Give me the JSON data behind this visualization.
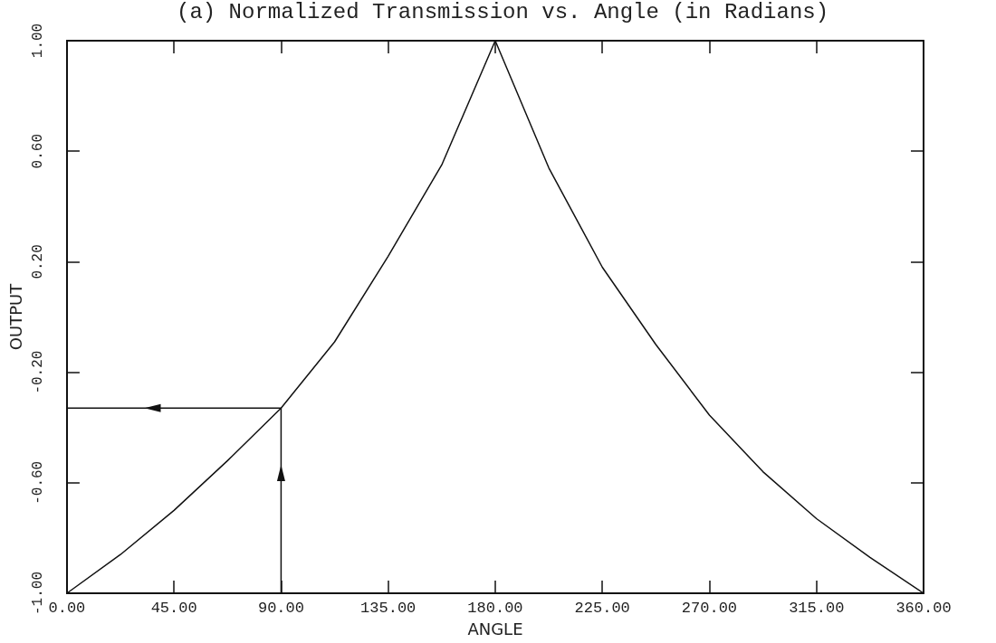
{
  "chart_data": {
    "type": "line",
    "title": "(a) Normalized Transmission vs. Angle (in Radians)",
    "xlabel": "ANGLE",
    "ylabel": "OUTPUT",
    "xlim": [
      0,
      360
    ],
    "ylim": [
      -1,
      1
    ],
    "xticks": [
      {
        "value": 0,
        "label": "0.00"
      },
      {
        "value": 45,
        "label": "45.00"
      },
      {
        "value": 90,
        "label": "90.00"
      },
      {
        "value": 135,
        "label": "135.00"
      },
      {
        "value": 180,
        "label": "180.00"
      },
      {
        "value": 225,
        "label": "225.00"
      },
      {
        "value": 270,
        "label": "270.00"
      },
      {
        "value": 315,
        "label": "315.00"
      },
      {
        "value": 360,
        "label": "360.00"
      }
    ],
    "yticks": [
      {
        "value": -1,
        "label": "-1.00"
      },
      {
        "value": -0.6,
        "label": "-0.60"
      },
      {
        "value": -0.2,
        "label": "-0.20"
      },
      {
        "value": 0.2,
        "label": "0.20"
      },
      {
        "value": 0.6,
        "label": "0.60"
      },
      {
        "value": 1,
        "label": "1.00"
      }
    ],
    "grid": false,
    "marker": "none",
    "line_style": "solid",
    "series": [
      {
        "color": "#111111",
        "x": [
          0,
          22.5,
          45,
          67.5,
          90,
          112.5,
          135,
          157.5,
          180,
          202.5,
          225,
          247.5,
          270,
          292.5,
          315,
          337.5,
          360
        ],
        "values": [
          -1,
          -0.86,
          -0.7,
          -0.52,
          -0.33,
          -0.09,
          0.22,
          0.55,
          1,
          0.54,
          0.18,
          -0.1,
          -0.355,
          -0.56,
          -0.73,
          -0.87,
          -1
        ]
      },
      {
        "color": "#111111",
        "x": [
          90,
          90,
          0
        ],
        "values": [
          -1,
          -0.33,
          -0.33
        ]
      }
    ]
  }
}
